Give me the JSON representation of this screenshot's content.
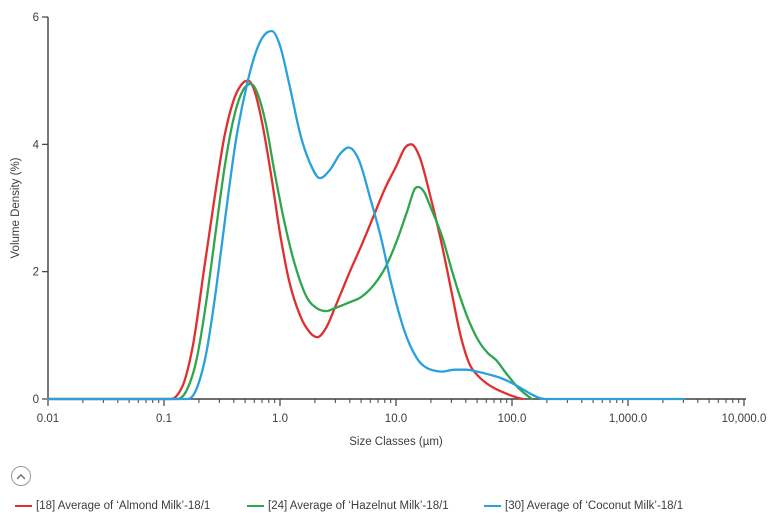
{
  "chart_data": {
    "type": "line",
    "title": "",
    "xlabel": "Size Classes (µm)",
    "ylabel": "Volume Density (%)",
    "x_scale": "log",
    "xlim": [
      0.01,
      10000
    ],
    "ylim": [
      0,
      6
    ],
    "grid": false,
    "legend_position": "bottom",
    "x_ticks": [
      {
        "v": 0.01,
        "label": "0.01"
      },
      {
        "v": 0.1,
        "label": "0.1"
      },
      {
        "v": 1,
        "label": "1.0"
      },
      {
        "v": 10,
        "label": "10.0"
      },
      {
        "v": 100,
        "label": "100.0"
      },
      {
        "v": 1000,
        "label": "1,000.0"
      },
      {
        "v": 10000,
        "label": "10,000.0"
      }
    ],
    "y_ticks": [
      {
        "v": 0,
        "label": "0"
      },
      {
        "v": 2,
        "label": "2"
      },
      {
        "v": 4,
        "label": "4"
      },
      {
        "v": 6,
        "label": "6"
      }
    ],
    "series": [
      {
        "name": "[18] Average of ‘Almond Milk’-18/1",
        "color": "#e02f2f",
        "points": [
          [
            0.01,
            0
          ],
          [
            0.06,
            0
          ],
          [
            0.1,
            0
          ],
          [
            0.115,
            0
          ],
          [
            0.13,
            0.06
          ],
          [
            0.15,
            0.28
          ],
          [
            0.18,
            0.9
          ],
          [
            0.22,
            2.0
          ],
          [
            0.27,
            3.1
          ],
          [
            0.33,
            4.1
          ],
          [
            0.4,
            4.7
          ],
          [
            0.47,
            4.95
          ],
          [
            0.53,
            5.0
          ],
          [
            0.6,
            4.85
          ],
          [
            0.7,
            4.35
          ],
          [
            0.85,
            3.45
          ],
          [
            1.0,
            2.6
          ],
          [
            1.2,
            1.85
          ],
          [
            1.5,
            1.3
          ],
          [
            1.8,
            1.05
          ],
          [
            2.1,
            0.97
          ],
          [
            2.5,
            1.12
          ],
          [
            3,
            1.45
          ],
          [
            4,
            2.0
          ],
          [
            5,
            2.4
          ],
          [
            6.5,
            2.9
          ],
          [
            8,
            3.3
          ],
          [
            10,
            3.65
          ],
          [
            12,
            3.95
          ],
          [
            13.5,
            4.0
          ],
          [
            16,
            3.8
          ],
          [
            20,
            3.15
          ],
          [
            25,
            2.4
          ],
          [
            30,
            1.7
          ],
          [
            36,
            1.0
          ],
          [
            43,
            0.55
          ],
          [
            50,
            0.38
          ],
          [
            60,
            0.25
          ],
          [
            72,
            0.16
          ],
          [
            85,
            0.1
          ],
          [
            100,
            0.05
          ],
          [
            112,
            0.02
          ],
          [
            124,
            0
          ]
        ]
      },
      {
        "name": "[24] Average of ‘Hazelnut Milk’-18/1",
        "color": "#2fa64e",
        "points": [
          [
            0.01,
            0
          ],
          [
            0.06,
            0
          ],
          [
            0.11,
            0
          ],
          [
            0.13,
            0
          ],
          [
            0.155,
            0.12
          ],
          [
            0.19,
            0.6
          ],
          [
            0.23,
            1.5
          ],
          [
            0.28,
            2.65
          ],
          [
            0.34,
            3.75
          ],
          [
            0.41,
            4.5
          ],
          [
            0.48,
            4.85
          ],
          [
            0.56,
            4.95
          ],
          [
            0.64,
            4.8
          ],
          [
            0.75,
            4.35
          ],
          [
            0.9,
            3.55
          ],
          [
            1.1,
            2.75
          ],
          [
            1.35,
            2.1
          ],
          [
            1.7,
            1.6
          ],
          [
            2.1,
            1.42
          ],
          [
            2.5,
            1.38
          ],
          [
            3,
            1.43
          ],
          [
            4,
            1.52
          ],
          [
            5,
            1.6
          ],
          [
            6.5,
            1.8
          ],
          [
            8,
            2.05
          ],
          [
            10,
            2.45
          ],
          [
            12.5,
            2.95
          ],
          [
            14.5,
            3.3
          ],
          [
            15.5,
            3.33
          ],
          [
            17.5,
            3.25
          ],
          [
            20,
            3.0
          ],
          [
            25,
            2.55
          ],
          [
            30,
            2.05
          ],
          [
            35,
            1.65
          ],
          [
            42,
            1.25
          ],
          [
            52,
            0.9
          ],
          [
            62,
            0.72
          ],
          [
            74,
            0.6
          ],
          [
            86,
            0.44
          ],
          [
            96,
            0.33
          ],
          [
            110,
            0.2
          ],
          [
            128,
            0.09
          ],
          [
            148,
            0
          ]
        ]
      },
      {
        "name": "[30] Average of ‘Coconut Milk’-18/1",
        "color": "#2aa0dc",
        "points": [
          [
            0.01,
            0
          ],
          [
            0.06,
            0
          ],
          [
            0.11,
            0
          ],
          [
            0.16,
            0
          ],
          [
            0.19,
            0.15
          ],
          [
            0.23,
            0.7
          ],
          [
            0.28,
            1.7
          ],
          [
            0.34,
            2.9
          ],
          [
            0.42,
            4.1
          ],
          [
            0.52,
            4.95
          ],
          [
            0.62,
            5.45
          ],
          [
            0.72,
            5.7
          ],
          [
            0.85,
            5.78
          ],
          [
            1.0,
            5.55
          ],
          [
            1.2,
            4.95
          ],
          [
            1.5,
            4.15
          ],
          [
            1.8,
            3.72
          ],
          [
            2.2,
            3.47
          ],
          [
            2.7,
            3.6
          ],
          [
            3.3,
            3.85
          ],
          [
            3.9,
            3.95
          ],
          [
            4.8,
            3.75
          ],
          [
            6,
            3.15
          ],
          [
            7.5,
            2.5
          ],
          [
            9,
            1.85
          ],
          [
            11,
            1.25
          ],
          [
            12.5,
            0.95
          ],
          [
            14,
            0.75
          ],
          [
            16,
            0.58
          ],
          [
            18,
            0.5
          ],
          [
            20,
            0.46
          ],
          [
            25,
            0.43
          ],
          [
            32,
            0.46
          ],
          [
            40,
            0.46
          ],
          [
            50,
            0.43
          ],
          [
            65,
            0.38
          ],
          [
            80,
            0.33
          ],
          [
            100,
            0.25
          ],
          [
            120,
            0.17
          ],
          [
            145,
            0.08
          ],
          [
            170,
            0.02
          ],
          [
            195,
            0
          ],
          [
            300,
            0
          ],
          [
            700,
            0
          ],
          [
            1500,
            0
          ],
          [
            3000,
            0
          ]
        ]
      }
    ]
  },
  "colors": {
    "axis": "#3f3f3f",
    "text": "#3d3d3d",
    "background": "#ffffff"
  },
  "controls": {
    "legend_collapse_icon": "chevron-up"
  }
}
